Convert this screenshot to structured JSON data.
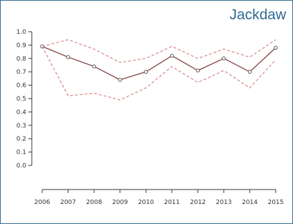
{
  "chart_data": {
    "type": "line",
    "title": "Jackdaw",
    "xlabel": "",
    "ylabel": "",
    "x": [
      "2006",
      "2007",
      "2008",
      "2009",
      "2010",
      "2011",
      "2012",
      "2013",
      "2014",
      "2015"
    ],
    "ylim": [
      0.0,
      1.0
    ],
    "yticks": [
      "0.0",
      "0.1",
      "0.2",
      "0.3",
      "0.4",
      "0.5",
      "0.6",
      "0.7",
      "0.8",
      "0.9",
      "1.0"
    ],
    "series": [
      {
        "role": "estimate",
        "values": [
          0.89,
          0.81,
          0.74,
          0.64,
          0.7,
          0.82,
          0.71,
          0.8,
          0.7,
          0.88
        ]
      },
      {
        "role": "upper",
        "values": [
          0.89,
          0.94,
          0.87,
          0.77,
          0.8,
          0.89,
          0.8,
          0.87,
          0.81,
          0.94
        ]
      },
      {
        "role": "lower",
        "values": [
          0.89,
          0.52,
          0.54,
          0.49,
          0.58,
          0.74,
          0.62,
          0.71,
          0.58,
          0.79
        ]
      }
    ],
    "colors": {
      "estimate": "#8b4a4a",
      "bounds": "#d98a8a",
      "points": "#555555",
      "axis": "#333333",
      "frame": "#2f6a8f"
    },
    "grid": false
  }
}
